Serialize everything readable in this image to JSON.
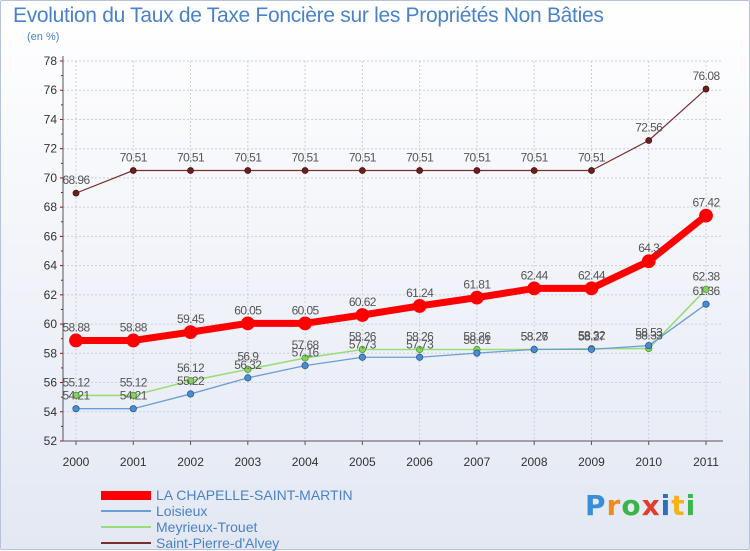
{
  "title": "Evolution du Taux de Taxe Foncière sur les Propriétés Non Bâties",
  "subtitle": "(en %)",
  "logo": {
    "text": "Proxiti",
    "letter_colors": [
      "#3a8ed6",
      "#f08a1c",
      "#3ab54a",
      "#e23c2c",
      "#2f6fc0",
      "#f5b31a",
      "#3ab54a"
    ]
  },
  "chart_data": {
    "type": "line",
    "title": "Evolution du Taux de Taxe Foncière sur les Propriétés Non Bâties",
    "ylabel": "(en %)",
    "xlabel": "",
    "x": [
      "2000",
      "2001",
      "2002",
      "2003",
      "2004",
      "2005",
      "2006",
      "2007",
      "2008",
      "2009",
      "2010",
      "2011"
    ],
    "ylim": [
      52,
      78
    ],
    "yticks": [
      "52",
      "54",
      "56",
      "58",
      "60",
      "62",
      "64",
      "66",
      "68",
      "70",
      "72",
      "74",
      "76",
      "78"
    ],
    "grid": true,
    "legend_position": "bottom-left",
    "series": [
      {
        "name": "Saint-Pierre-d'Alvey",
        "color": "#7a2e2e",
        "values": [
          68.96,
          70.51,
          70.51,
          70.51,
          70.51,
          70.51,
          70.51,
          70.51,
          70.51,
          70.51,
          72.56,
          76.08
        ],
        "labels": [
          "68.96",
          "70.51",
          "70.51",
          "70.51",
          "70.51",
          "70.51",
          "70.51",
          "70.51",
          "70.51",
          "70.51",
          "72.56",
          "76.08"
        ]
      },
      {
        "name": "Meyrieux-Trouet",
        "color": "#99dd77",
        "values": [
          55.12,
          55.12,
          56.12,
          56.9,
          57.68,
          58.26,
          58.26,
          58.26,
          58.26,
          58.32,
          58.33,
          62.38
        ],
        "labels": [
          "55.12",
          "55.12",
          "56.12",
          "56.9",
          "57.68",
          "58.26",
          "58.26",
          "58.26",
          "58.26",
          "58.32",
          "58.33",
          "62.38"
        ]
      },
      {
        "name": "Loisieux",
        "color": "#6b9dd8",
        "values": [
          54.21,
          54.21,
          55.22,
          56.32,
          57.16,
          57.73,
          57.73,
          58.01,
          58.27,
          58.27,
          58.53,
          61.36
        ],
        "labels": [
          "54.21",
          "54.21",
          "55.22",
          "56.32",
          "57.16",
          "57.73",
          "57.73",
          "58.01",
          "58.27",
          "58.27",
          "58.53",
          "61.36"
        ]
      },
      {
        "name": "LA CHAPELLE-SAINT-MARTIN",
        "color": "#ff0000",
        "values": [
          58.88,
          58.88,
          59.45,
          60.05,
          60.05,
          60.62,
          61.24,
          61.81,
          62.44,
          62.44,
          64.3,
          67.42
        ],
        "labels": [
          "58.88",
          "58.88",
          "59.45",
          "60.05",
          "60.05",
          "60.62",
          "61.24",
          "61.81",
          "62.44",
          "62.44",
          "64.3",
          "67.42"
        ]
      }
    ],
    "legend": [
      {
        "name": "LA CHAPELLE-SAINT-MARTIN",
        "color": "#ff0000"
      },
      {
        "name": "Loisieux",
        "color": "#6b9dd8"
      },
      {
        "name": "Meyrieux-Trouet",
        "color": "#99dd77"
      },
      {
        "name": "Saint-Pierre-d'Alvey",
        "color": "#7a2e2e"
      }
    ]
  }
}
